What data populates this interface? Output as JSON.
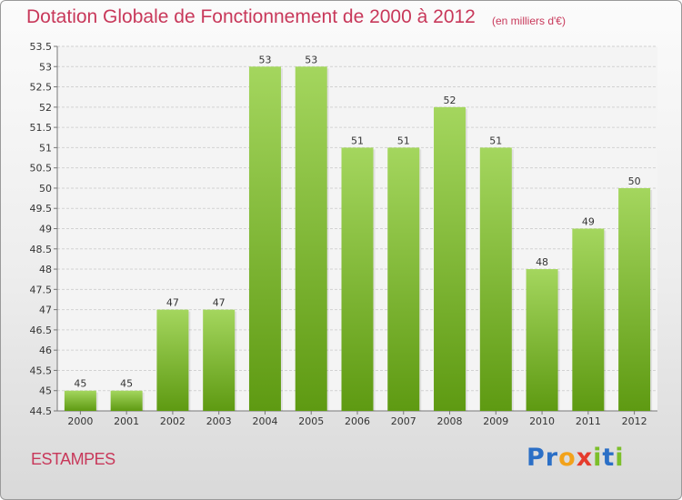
{
  "chart_data": {
    "type": "bar",
    "title": "Dotation Globale de Fonctionnement de 2000 à 2012",
    "unit_note": "(en milliers d'€)",
    "categories": [
      "2000",
      "2001",
      "2002",
      "2003",
      "2004",
      "2005",
      "2006",
      "2007",
      "2008",
      "2009",
      "2010",
      "2011",
      "2012"
    ],
    "values": [
      45,
      45,
      47,
      47,
      53,
      53,
      51,
      51,
      52,
      51,
      48,
      49,
      50
    ],
    "ylim": [
      44.5,
      53.5
    ],
    "yticks": [
      "44.5",
      "45",
      "45.5",
      "46",
      "46.5",
      "47",
      "47.5",
      "48",
      "48.5",
      "49",
      "49.5",
      "50",
      "50.5",
      "51",
      "51.5",
      "52",
      "52.5",
      "53",
      "53.5"
    ],
    "xlabel": "",
    "ylabel": "",
    "grid": true,
    "bar_color_top": "#a4d65e",
    "bar_color_bottom": "#5e9a12",
    "title_color": "#c8385a"
  },
  "footer": {
    "city": "ESTAMPES",
    "brand_letters": [
      "P",
      "r",
      "o",
      "x",
      "i",
      "t",
      "i"
    ],
    "brand_colors": [
      "#2b6fc6",
      "#2b6fc6",
      "#f2a21a",
      "#e53b2c",
      "#7cbf2a",
      "#2b6fc6",
      "#7cbf2a"
    ]
  }
}
